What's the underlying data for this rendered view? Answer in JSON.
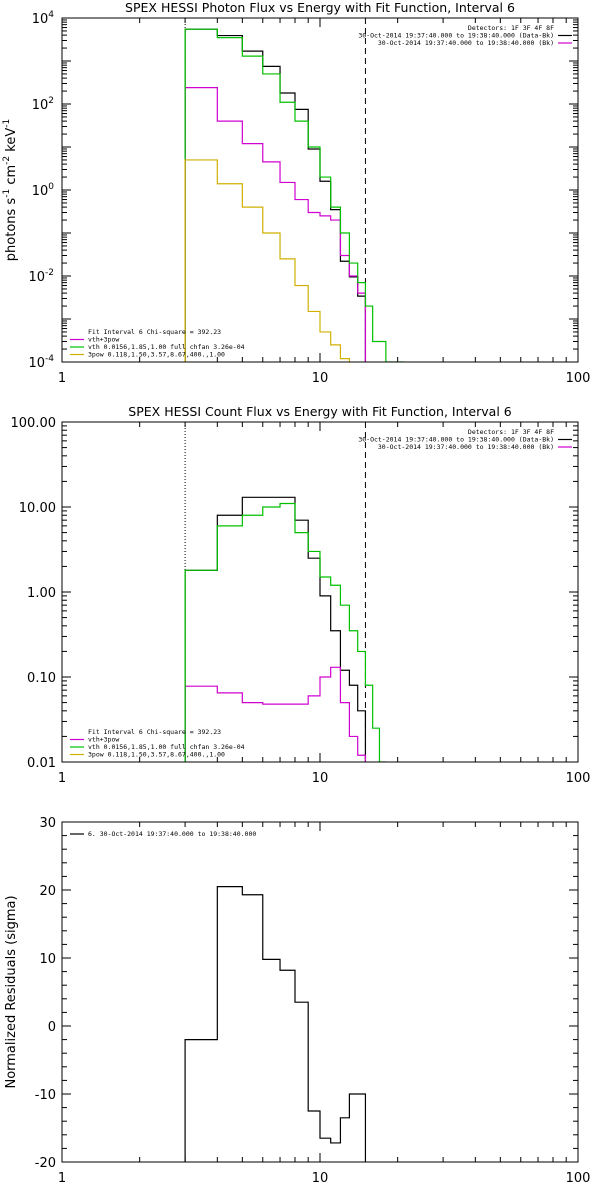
{
  "chart_data": [
    {
      "type": "line",
      "title": "SPEX HESSI Photon Flux vs Energy with Fit Function, Interval 6",
      "ylabel_main": "photons s",
      "ylabel_mid1": " cm",
      "ylabel_mid2": " keV",
      "ylabel_sup1": "-1",
      "ylabel_sup2": "-2",
      "ylabel_sup3": "-1",
      "xscale": "log",
      "yscale": "log",
      "xlim": [
        1,
        100
      ],
      "ylim": [
        0.0001,
        10000
      ],
      "xticks": [
        {
          "v": 1,
          "label": "1"
        },
        {
          "v": 10,
          "label": "10"
        },
        {
          "v": 100,
          "label": "100"
        }
      ],
      "yticks": [
        {
          "v": 0.0001,
          "base": "10",
          "exp": "-4"
        },
        {
          "v": 0.01,
          "base": "10",
          "exp": "-2"
        },
        {
          "v": 1,
          "base": "10",
          "exp": "0"
        },
        {
          "v": 100,
          "base": "10",
          "exp": "2"
        },
        {
          "v": 10000,
          "base": "10",
          "exp": "4"
        }
      ],
      "legend_top": [
        {
          "text": "Detectors: 1F 3F 4F 8F",
          "color": "#000000",
          "line": false
        },
        {
          "text": "30-Oct-2014 19:37:40.000 to 19:38:40.000 (Data-Bk)",
          "color": "#000000",
          "line": true
        },
        {
          "text": "30-Oct-2014 19:37:40.000 to 19:38:40.000 (Bk)",
          "color": "#d000d0",
          "line": true
        }
      ],
      "legend_bottom": [
        {
          "text": "Fit Interval 6   Chi-square = 392.23",
          "color": "#000000",
          "line": false
        },
        {
          "text": "vth+3pow",
          "color": "#d000d0",
          "line": true
        },
        {
          "text": "vth 0.0156,1.85,1.00  full chfan 3.26e-04",
          "color": "#00c000",
          "line": true
        },
        {
          "text": "3pow 0.118,1.50,3.57,8.67,400.,1.00",
          "color": "#d0b000",
          "line": true
        }
      ],
      "vlines": [
        {
          "x": 3,
          "style": "dotted"
        },
        {
          "x": 15,
          "style": "dashed"
        }
      ],
      "series": [
        {
          "name": "30-Oct-2014 19:37:40.000 to 19:38:40.000 (Data-Bk)",
          "color": "#000000",
          "edges": [
            3,
            4,
            5,
            6,
            7,
            8,
            9,
            10,
            11,
            12,
            13,
            14,
            15
          ],
          "values": [
            5500,
            3900,
            1700,
            750,
            180,
            75,
            9,
            1.6,
            0.35,
            0.022,
            0.0095,
            0.0034
          ]
        },
        {
          "name": "vth+3pow",
          "color": "#d000d0",
          "edges": [
            3,
            4,
            5,
            6,
            7,
            8,
            9,
            10,
            11,
            12,
            13,
            14,
            15
          ],
          "values": [
            240,
            40,
            12,
            4.5,
            1.5,
            0.6,
            0.3,
            0.25,
            0.2,
            0.03,
            0.01,
            0.004
          ]
        },
        {
          "name": "vth 0.0156,1.85,1.00  full chfan 3.26e-04",
          "color": "#00c000",
          "edges": [
            3,
            4,
            5,
            6,
            7,
            8,
            9,
            10,
            11,
            12,
            13,
            14,
            15,
            16,
            18,
            20,
            21
          ],
          "values": [
            5500,
            3500,
            1300,
            500,
            110,
            40,
            10,
            2,
            0.4,
            0.1,
            0.02,
            0.007,
            0.002,
            0.0003,
            0.0001,
            0.0001
          ]
        },
        {
          "name": "3pow 0.118,1.50,3.57,8.67,400.,1.00",
          "color": "#d0b000",
          "edges": [
            3,
            4,
            5,
            6,
            7,
            8,
            9,
            10,
            11,
            12,
            13
          ],
          "values": [
            5,
            1.4,
            0.4,
            0.1,
            0.025,
            0.006,
            0.0015,
            0.0005,
            0.00025,
            0.00012
          ]
        }
      ]
    },
    {
      "type": "line",
      "title": "SPEX HESSI Count Flux vs Energy with Fit Function, Interval 6",
      "ylabel_main": "",
      "xscale": "log",
      "yscale": "log",
      "xlim": [
        1,
        100
      ],
      "ylim": [
        0.01,
        100
      ],
      "xticks": [
        {
          "v": 1,
          "label": "1"
        },
        {
          "v": 10,
          "label": "10"
        },
        {
          "v": 100,
          "label": "100"
        }
      ],
      "yticks": [
        {
          "v": 0.01,
          "label": "0.01"
        },
        {
          "v": 0.1,
          "label": "0.10"
        },
        {
          "v": 1,
          "label": "1.00"
        },
        {
          "v": 10,
          "label": "10.00"
        },
        {
          "v": 100,
          "label": "100.00"
        }
      ],
      "legend_top": [
        {
          "text": "Detectors: 1F 3F 4F 8F",
          "color": "#000000",
          "line": false
        },
        {
          "text": "30-Oct-2014 19:37:40.000 to 19:38:40.000 (Data-Bk)",
          "color": "#000000",
          "line": true
        },
        {
          "text": "30-Oct-2014 19:37:40.000 to 19:38:40.000 (Bk)",
          "color": "#d000d0",
          "line": true
        }
      ],
      "legend_bottom": [
        {
          "text": "Fit Interval 6   Chi-square = 392.23",
          "color": "#000000",
          "line": false
        },
        {
          "text": "vth+3pow",
          "color": "#d000d0",
          "line": true
        },
        {
          "text": "vth 0.0156,1.85,1.00  full chfan 3.26e-04",
          "color": "#00c000",
          "line": true
        },
        {
          "text": "3pow 0.118,1.50,3.57,8.67,400.,1.00",
          "color": "#d0b000",
          "line": true
        }
      ],
      "vlines": [
        {
          "x": 3,
          "style": "dotted"
        },
        {
          "x": 15,
          "style": "dashed"
        }
      ],
      "series": [
        {
          "name": "30-Oct-2014 19:37:40.000 to 19:38:40.000 (Data-Bk)",
          "color": "#000000",
          "edges": [
            3,
            4,
            5,
            6,
            7,
            8,
            9,
            10,
            11,
            12,
            13,
            14,
            15
          ],
          "values": [
            1.8,
            8,
            13,
            13,
            13,
            7,
            2.5,
            0.9,
            0.35,
            0.12,
            0.08,
            0.04
          ]
        },
        {
          "name": "30-Oct-2014 19:37:40.000 to 19:38:40.000 (Bk)",
          "color": "#d000d0",
          "edges": [
            3,
            4,
            5,
            6,
            7,
            8,
            9,
            10,
            11,
            12,
            13,
            14,
            15
          ],
          "values": [
            0.078,
            0.065,
            0.05,
            0.048,
            0.048,
            0.048,
            0.06,
            0.1,
            0.13,
            0.05,
            0.02,
            0.012
          ]
        },
        {
          "name": "vth 0.0156,1.85,1.00  full chfan 3.26e-04",
          "color": "#00c000",
          "edges": [
            3,
            4,
            5,
            6,
            7,
            8,
            9,
            10,
            11,
            12,
            13,
            14,
            15,
            16,
            17,
            18
          ],
          "values": [
            1.8,
            6,
            8,
            10,
            11,
            5,
            3,
            1.5,
            1.2,
            0.7,
            0.35,
            0.2,
            0.08,
            0.025,
            0.01
          ]
        }
      ]
    },
    {
      "type": "line",
      "title": "",
      "ylabel_main": "Normalized Residuals (sigma)",
      "xscale": "log",
      "yscale": "linear",
      "xlim": [
        1,
        100
      ],
      "ylim": [
        -20,
        30
      ],
      "xticks": [
        {
          "v": 1,
          "label": "1"
        },
        {
          "v": 10,
          "label": "10"
        },
        {
          "v": 100,
          "label": "100"
        }
      ],
      "yticks": [
        {
          "v": -20,
          "label": "-20"
        },
        {
          "v": -10,
          "label": "-10"
        },
        {
          "v": 0,
          "label": "0"
        },
        {
          "v": 10,
          "label": "10"
        },
        {
          "v": 20,
          "label": "20"
        },
        {
          "v": 30,
          "label": "30"
        }
      ],
      "legend_top_left": [
        {
          "text": "6. 30-Oct-2014 19:37:40.000 to 19:38:40.000",
          "color": "#000000",
          "line": true
        }
      ],
      "vlines": [],
      "series": [
        {
          "name": "6. 30-Oct-2014 19:37:40.000 to 19:38:40.000",
          "color": "#000000",
          "edges": [
            3,
            4,
            5,
            6,
            7,
            8,
            9,
            10,
            11,
            12,
            13,
            14,
            15
          ],
          "values": [
            -2,
            20.5,
            19.3,
            9.8,
            8.2,
            3.5,
            -12.5,
            -16.5,
            -17.2,
            -13.5,
            -10,
            -10
          ],
          "drop_to_bottom": true
        }
      ]
    }
  ]
}
